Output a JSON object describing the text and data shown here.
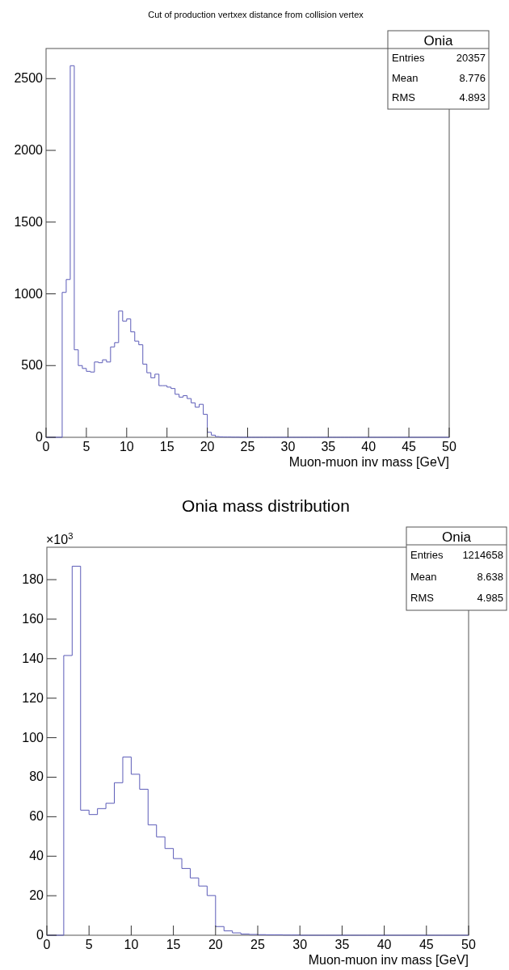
{
  "chart_data": [
    {
      "type": "histogram",
      "title": "Cut of production vertxex distance from collision vertex",
      "xlabel": "Muon-muon inv mass [GeV]",
      "color": "#5c5cb8",
      "bins": [
        0,
        0.5,
        1,
        1.5,
        2,
        2.5,
        3,
        3.5,
        4,
        4.5,
        5,
        5.5,
        6,
        6.5,
        7,
        7.5,
        8,
        8.5,
        9,
        9.5,
        10,
        10.5,
        11,
        11.5,
        12,
        12.5,
        13,
        13.5,
        14,
        14.5,
        15,
        15.5,
        16,
        16.5,
        17,
        17.5,
        18,
        18.5,
        19,
        19.5,
        20,
        20.5,
        21,
        21.5,
        22,
        22.5,
        23,
        23.5,
        24,
        24.5,
        25,
        25.5,
        26,
        26.5,
        27,
        27.5,
        28,
        28.5,
        29,
        29.5,
        30,
        30.5,
        31,
        31.5,
        32,
        32.5,
        33,
        33.5,
        34,
        34.5,
        35,
        35.5,
        36,
        36.5,
        37,
        37.5,
        38,
        38.5,
        39,
        39.5,
        40,
        40.5,
        41,
        41.5,
        42,
        42.5,
        43,
        43.5,
        44,
        44.5,
        45,
        45.5,
        46,
        46.5,
        47,
        47.5,
        48,
        48.5,
        49,
        49.5,
        50
      ],
      "values": [
        0,
        0,
        0,
        0,
        1010,
        1100,
        2590,
        610,
        500,
        480,
        460,
        455,
        525,
        520,
        540,
        525,
        630,
        660,
        880,
        810,
        825,
        735,
        670,
        645,
        510,
        450,
        415,
        440,
        360,
        360,
        350,
        340,
        300,
        280,
        290,
        270,
        240,
        210,
        230,
        160,
        35,
        15,
        5,
        3,
        2,
        2,
        1,
        1,
        0,
        0,
        0,
        0,
        0,
        0,
        0,
        0,
        0,
        0,
        0,
        0,
        0,
        0,
        0,
        0,
        0,
        0,
        0,
        0,
        0,
        0,
        0,
        0,
        0,
        0,
        0,
        0,
        0,
        0,
        0,
        0,
        0,
        0,
        0,
        0,
        0,
        0,
        0,
        0,
        0,
        0,
        0,
        0,
        0,
        0,
        0,
        0,
        0,
        0,
        0,
        0
      ],
      "xlim": [
        0,
        50
      ],
      "xticks": [
        0,
        5,
        10,
        15,
        20,
        25,
        30,
        35,
        40,
        45,
        50
      ],
      "ylim": [
        0,
        2710
      ],
      "yticks": [
        0,
        500,
        1000,
        1500,
        2000,
        2500
      ],
      "annotations": [
        "Onia",
        "Entries",
        "20357",
        "Mean",
        "8.776",
        "RMS",
        "4.893"
      ]
    },
    {
      "type": "histogram",
      "title": "Onia mass distribution",
      "xlabel": "Muon-muon inv mass [GeV]",
      "color": "#5c5cb8",
      "bins": [
        0,
        1,
        2,
        3,
        4,
        5,
        6,
        7,
        8,
        9,
        10,
        11,
        12,
        13,
        14,
        15,
        16,
        17,
        18,
        19,
        20,
        21,
        22,
        23,
        24,
        25,
        26,
        27,
        28,
        29,
        30,
        31,
        32,
        33,
        34,
        35,
        36,
        37,
        38,
        39,
        40,
        41,
        42,
        43,
        44,
        45,
        46,
        47,
        48,
        49,
        50
      ],
      "values": [
        0,
        0,
        141.6,
        186.8,
        63.3,
        61.1,
        64.1,
        66.8,
        77.2,
        90.2,
        81.5,
        73.9,
        55.9,
        49.8,
        43.9,
        38.8,
        33.8,
        29.0,
        24.9,
        20.1,
        4.4,
        2.2,
        1.2,
        0.6,
        0.4,
        0.3,
        0.2,
        0.2,
        0.1,
        0.1,
        0,
        0,
        0,
        0,
        0,
        0,
        0,
        0,
        0,
        0,
        0,
        0,
        0,
        0,
        0,
        0,
        0,
        0,
        0,
        0
      ],
      "xlim": [
        0,
        50
      ],
      "xticks": [
        0,
        5,
        10,
        15,
        20,
        25,
        30,
        35,
        40,
        45,
        50
      ],
      "ylim": [
        0,
        196.4
      ],
      "yticks": [
        0,
        20,
        40,
        60,
        80,
        100,
        120,
        140,
        160,
        180
      ],
      "annotations": [
        "×10$^{3}$",
        "Onia",
        "Entries",
        "1214658",
        "Mean",
        "8.638",
        "RMS",
        "4.985"
      ]
    }
  ]
}
